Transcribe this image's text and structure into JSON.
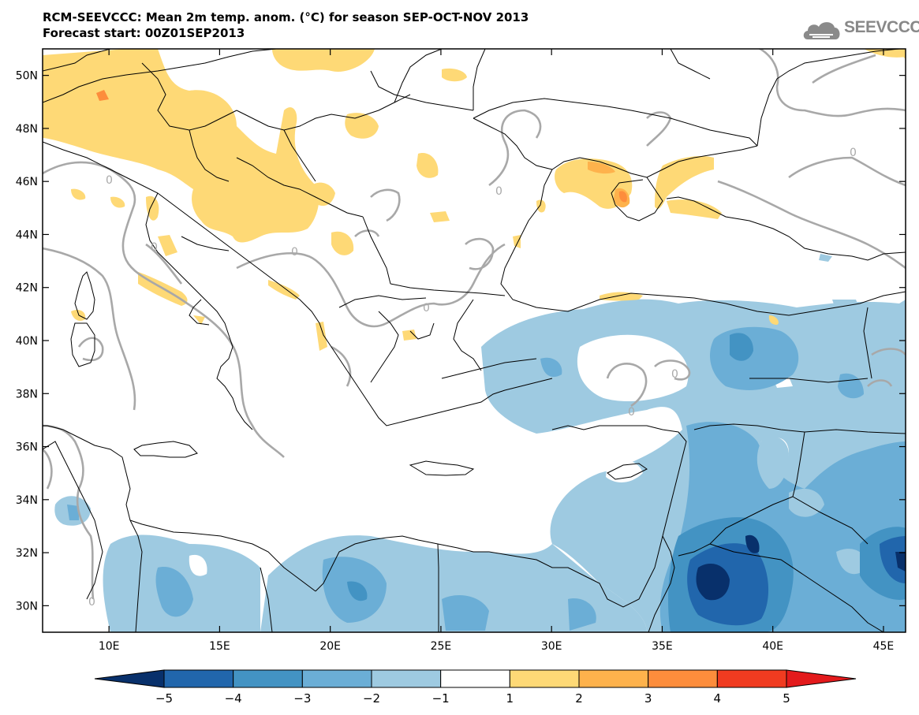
{
  "header": {
    "title_line1": "RCM-SEEVCCC: Mean 2m temp. anom. (°C) for season SEP-OCT-NOV 2013",
    "title_line2": "Forecast start: 00Z01SEP2013"
  },
  "logo": {
    "text": "SEEVCCC",
    "icon": "cloud-logo-icon"
  },
  "map": {
    "lon_range": [
      7,
      46
    ],
    "lat_range": [
      29,
      51
    ],
    "lon_ticks": [
      "10E",
      "15E",
      "20E",
      "25E",
      "30E",
      "35E",
      "40E",
      "45E"
    ],
    "lat_ticks": [
      "30N",
      "32N",
      "34N",
      "36N",
      "38N",
      "40N",
      "42N",
      "44N",
      "46N",
      "48N",
      "50N"
    ],
    "contour_label": "0"
  },
  "colorbar": {
    "labels": [
      "−5",
      "−4",
      "−3",
      "−2",
      "−1",
      "1",
      "2",
      "3",
      "4",
      "5"
    ],
    "colors": [
      "#08306b",
      "#2166ac",
      "#4393c3",
      "#6baed6",
      "#9ecae1",
      "#ffffff",
      "#fed976",
      "#feb24c",
      "#fd8d3c",
      "#f03b20",
      "#e31a1c"
    ]
  }
}
